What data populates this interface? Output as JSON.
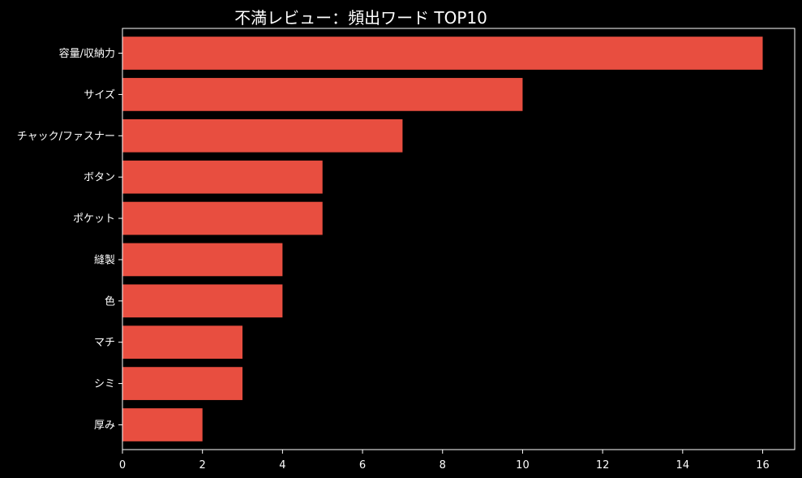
{
  "chart_data": {
    "type": "bar",
    "orientation": "horizontal",
    "title": "不満レビュー：頻出ワード TOP10",
    "xlabel": "",
    "ylabel": "",
    "categories": [
      "容量/収納力",
      "サイズ",
      "チャック/ファスナー",
      "ボタン",
      "ポケット",
      "縫製",
      "色",
      "マチ",
      "シミ",
      "厚み"
    ],
    "values": [
      16,
      10,
      7,
      5,
      5,
      4,
      4,
      3,
      3,
      2
    ],
    "xlim": [
      0,
      16.8
    ],
    "xticks": [
      0,
      2,
      4,
      6,
      8,
      10,
      12,
      14,
      16
    ],
    "grid": false,
    "colors": {
      "bar": "#e84e40",
      "background": "#000000",
      "axis": "#ffffff",
      "text": "#ffffff"
    }
  }
}
